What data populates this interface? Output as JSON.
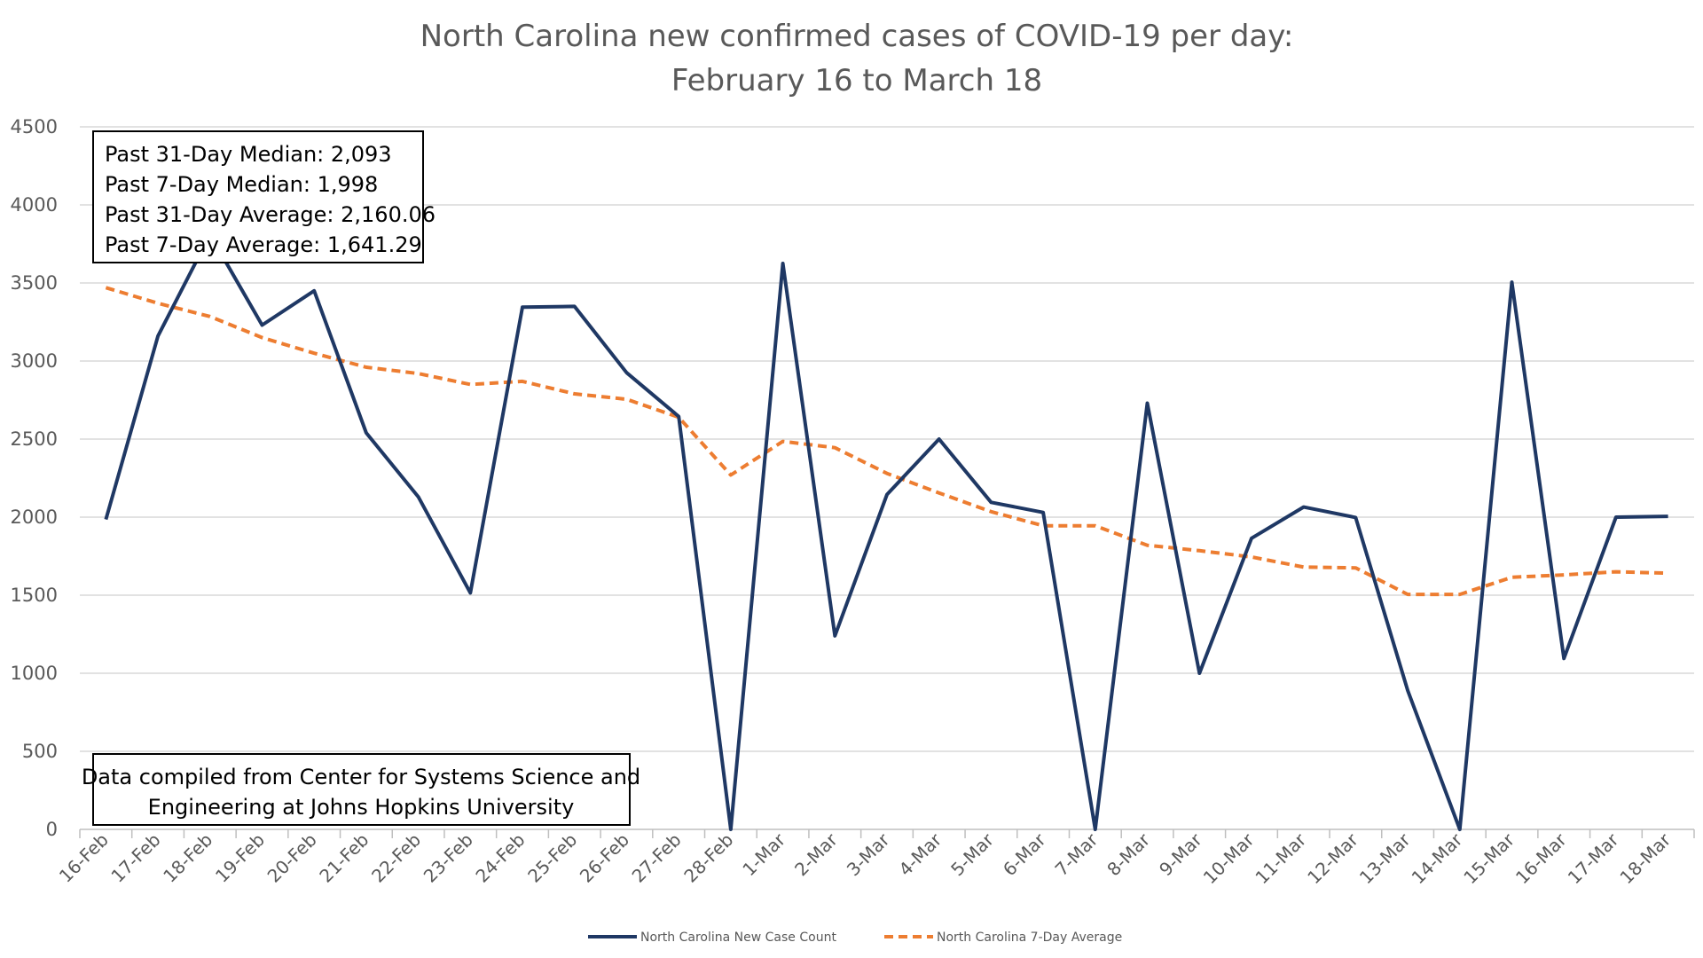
{
  "chart_data": {
    "type": "line",
    "title_lines": [
      "North Carolina new confirmed cases of COVID-19 per day:",
      "February 16 to March 18"
    ],
    "categories": [
      "16-Feb",
      "17-Feb",
      "18-Feb",
      "19-Feb",
      "20-Feb",
      "21-Feb",
      "22-Feb",
      "23-Feb",
      "24-Feb",
      "25-Feb",
      "26-Feb",
      "27-Feb",
      "28-Feb",
      "1-Mar",
      "2-Mar",
      "3-Mar",
      "4-Mar",
      "5-Mar",
      "6-Mar",
      "7-Mar",
      "8-Mar",
      "9-Mar",
      "10-Mar",
      "11-Mar",
      "12-Mar",
      "13-Mar",
      "14-Mar",
      "15-Mar",
      "16-Mar",
      "17-Mar",
      "18-Mar"
    ],
    "series": [
      {
        "name": "North Carolina New Case Count",
        "color": "#1F3864",
        "style": "solid",
        "values": [
          1985,
          3160,
          3810,
          3230,
          3450,
          2540,
          2130,
          1515,
          3345,
          3350,
          2925,
          2645,
          0,
          3625,
          1240,
          2145,
          2500,
          2095,
          2030,
          0,
          2730,
          1000,
          1865,
          2065,
          1998,
          890,
          0,
          3505,
          1095,
          2000,
          2005
        ]
      },
      {
        "name": "North Carolina 7-Day Average",
        "color": "#ED7D31",
        "style": "dashed",
        "values": [
          3470,
          3370,
          3285,
          3150,
          3050,
          2960,
          2920,
          2850,
          2870,
          2790,
          2755,
          2640,
          2270,
          2485,
          2445,
          2280,
          2155,
          2035,
          1945,
          1945,
          1820,
          1785,
          1745,
          1680,
          1675,
          1505,
          1505,
          1615,
          1630,
          1650,
          1641
        ]
      }
    ],
    "ylim": [
      0,
      4500
    ],
    "yticks": [
      0,
      500,
      1000,
      1500,
      2000,
      2500,
      3000,
      3500,
      4000,
      4500
    ],
    "ytick_labels": [
      "0",
      "500",
      "1000",
      "1500",
      "2000",
      "2500",
      "3000",
      "3500",
      "4000",
      "4500"
    ],
    "grid": true,
    "legend_position": "bottom",
    "annotations": {
      "stats_box": [
        "Past 31-Day Median: 2,093",
        "Past 7-Day Median: 1,998",
        "Past 31-Day Average: 2,160.06",
        "Past 7-Day Average: 1,641.29"
      ],
      "source_box": [
        "Data compiled from Center for Systems Science and",
        "Engineering at Johns Hopkins University"
      ]
    },
    "colors": {
      "grid": "#D9D9D9",
      "axis": "#BFBFBF",
      "title": "#595959",
      "tick": "#595959"
    }
  }
}
